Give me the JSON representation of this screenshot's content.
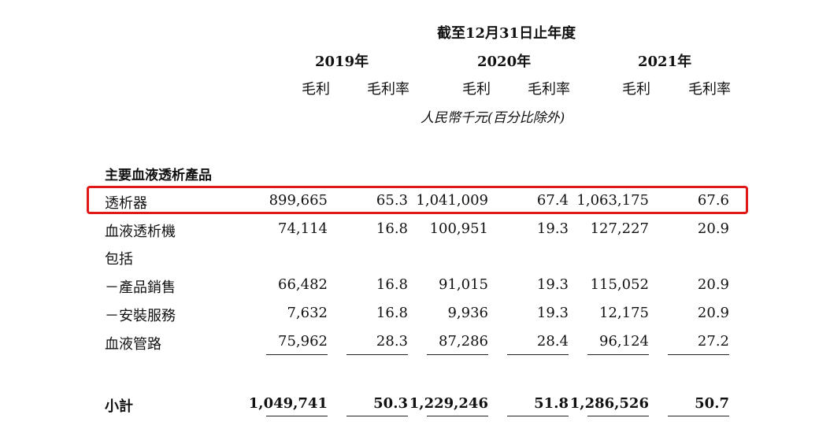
{
  "period_header": "截至12月31日止年度",
  "years": [
    "2019年",
    "2020年",
    "2021年"
  ],
  "column_labels": [
    "毛利",
    "毛利率",
    "毛利",
    "毛利率",
    "毛利",
    "毛利率"
  ],
  "units_note": "人民幣千元(百分比除外)",
  "section_title": "主要血液透析產品",
  "rows": [
    {
      "label": "透析器",
      "values": [
        "899,665",
        "65.3",
        "1,041,009",
        "67.4",
        "1,063,175",
        "67.6"
      ],
      "highlighted": true
    },
    {
      "label": "血液透析機",
      "values": [
        "74,114",
        "16.8",
        "100,951",
        "19.3",
        "127,227",
        "20.9"
      ]
    },
    {
      "label": "包括",
      "values": []
    },
    {
      "label": "－產品銷售",
      "values": [
        "66,482",
        "16.8",
        "91,015",
        "19.3",
        "115,052",
        "20.9"
      ]
    },
    {
      "label": "－安裝服務",
      "values": [
        "7,632",
        "16.8",
        "9,936",
        "19.3",
        "12,175",
        "20.9"
      ]
    },
    {
      "label": "血液管路",
      "values": [
        "75,962",
        "28.3",
        "87,286",
        "28.4",
        "96,124",
        "27.2"
      ]
    }
  ],
  "subtotal": {
    "label": "小計",
    "values": [
      "1,049,741",
      "50.3",
      "1,229,246",
      "51.8",
      "1,286,526",
      "50.7"
    ]
  },
  "highlight_color": "#e01818"
}
